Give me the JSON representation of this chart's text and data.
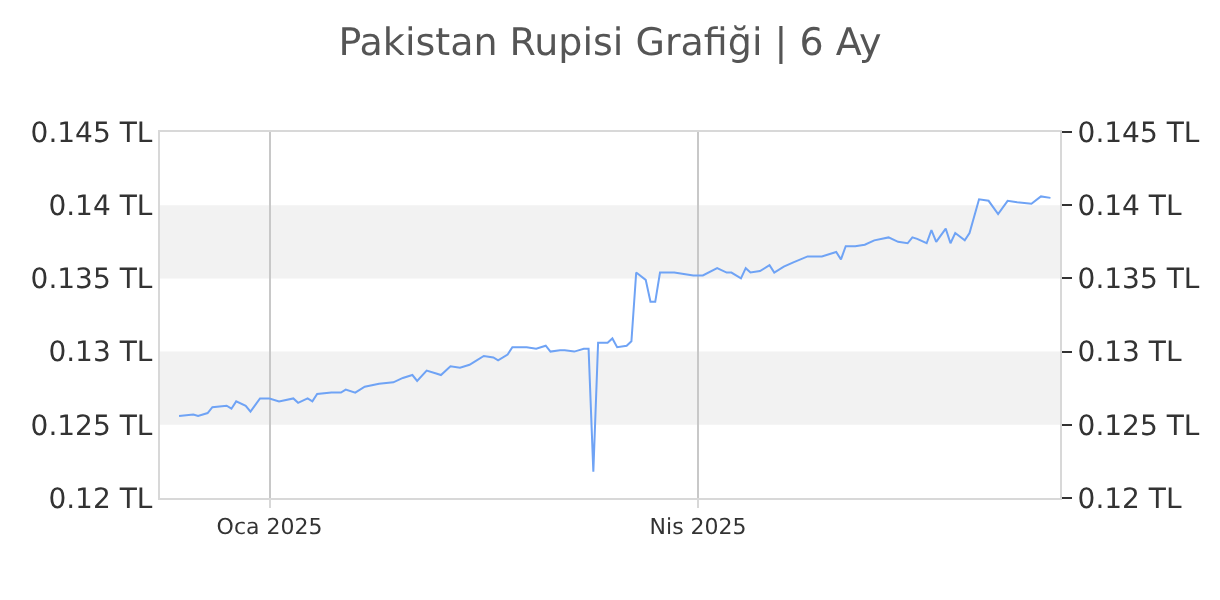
{
  "chart_data": {
    "type": "line",
    "title": "Pakistan Rupisi Grafiği | 6 Ay",
    "x": [
      "2024-12-13",
      "2024-12-16",
      "2024-12-17",
      "2024-12-19",
      "2024-12-20",
      "2024-12-23",
      "2024-12-24",
      "2024-12-25",
      "2024-12-27",
      "2024-12-28",
      "2024-12-30",
      "2025-01-01",
      "2025-01-03",
      "2025-01-06",
      "2025-01-07",
      "2025-01-09",
      "2025-01-10",
      "2025-01-11",
      "2025-01-14",
      "2025-01-16",
      "2025-01-17",
      "2025-01-19",
      "2025-01-21",
      "2025-01-24",
      "2025-01-27",
      "2025-01-29",
      "2025-01-31",
      "2025-02-01",
      "2025-02-03",
      "2025-02-05",
      "2025-02-06",
      "2025-02-08",
      "2025-02-10",
      "2025-02-12",
      "2025-02-13",
      "2025-02-15",
      "2025-02-17",
      "2025-02-18",
      "2025-02-20",
      "2025-02-21",
      "2025-02-24",
      "2025-02-26",
      "2025-02-28",
      "2025-03-01",
      "2025-03-03",
      "2025-03-04",
      "2025-03-06",
      "2025-03-08",
      "2025-03-09",
      "2025-03-10",
      "2025-03-11",
      "2025-03-13",
      "2025-03-14",
      "2025-03-15",
      "2025-03-17",
      "2025-03-18",
      "2025-03-19",
      "2025-03-21",
      "2025-03-22",
      "2025-03-23",
      "2025-03-24",
      "2025-03-27",
      "2025-03-31",
      "2025-04-02",
      "2025-04-05",
      "2025-04-07",
      "2025-04-08",
      "2025-04-10",
      "2025-04-11",
      "2025-04-12",
      "2025-04-14",
      "2025-04-16",
      "2025-04-17",
      "2025-04-19",
      "2025-04-21",
      "2025-04-24",
      "2025-04-27",
      "2025-04-30",
      "2025-05-01",
      "2025-05-02",
      "2025-05-04",
      "2025-05-06",
      "2025-05-08",
      "2025-05-11",
      "2025-05-13",
      "2025-05-15",
      "2025-05-16",
      "2025-05-17",
      "2025-05-19",
      "2025-05-20",
      "2025-05-21",
      "2025-05-23",
      "2025-05-24",
      "2025-05-25",
      "2025-05-27",
      "2025-05-28",
      "2025-05-30",
      "2025-06-01",
      "2025-06-03",
      "2025-06-05",
      "2025-06-07",
      "2025-06-10",
      "2025-06-12",
      "2025-06-14"
    ],
    "series": [
      {
        "color": "#6fa3f5",
        "values": [
          0.1256,
          0.1257,
          0.1256,
          0.1258,
          0.1262,
          0.1263,
          0.1261,
          0.1266,
          0.1263,
          0.1259,
          0.1268,
          0.1268,
          0.1266,
          0.1268,
          0.1265,
          0.1268,
          0.1266,
          0.1271,
          0.1272,
          0.1272,
          0.1274,
          0.1272,
          0.1276,
          0.1278,
          0.1279,
          0.1282,
          0.1284,
          0.128,
          0.1287,
          0.1285,
          0.1284,
          0.129,
          0.1289,
          0.1291,
          0.1293,
          0.1297,
          0.1296,
          0.1294,
          0.1298,
          0.1303,
          0.1303,
          0.1302,
          0.1304,
          0.13,
          0.1301,
          0.1301,
          0.13,
          0.1302,
          0.1302,
          0.1218,
          0.1306,
          0.1306,
          0.1309,
          0.1303,
          0.1304,
          0.1307,
          0.1354,
          0.1349,
          0.1334,
          0.1334,
          0.1354,
          0.1354,
          0.1352,
          0.1352,
          0.1357,
          0.1354,
          0.1354,
          0.135,
          0.1357,
          0.1354,
          0.1355,
          0.1359,
          0.1354,
          0.1358,
          0.1361,
          0.1365,
          0.1365,
          0.1368,
          0.1363,
          0.1372,
          0.1372,
          0.1373,
          0.1376,
          0.1378,
          0.1375,
          0.1374,
          0.1378,
          0.1377,
          0.1374,
          0.1383,
          0.1375,
          0.1384,
          0.1374,
          0.1381,
          0.1376,
          0.1381,
          0.1404,
          0.1403,
          0.1394,
          0.1403,
          0.1402,
          0.1401,
          0.1406,
          0.1405
        ]
      }
    ],
    "xlim": [
      "2024-12-09",
      "2025-06-16"
    ],
    "xticks": [
      {
        "value": "2025-01-01",
        "label": "Oca 2025"
      },
      {
        "value": "2025-04-01",
        "label": "Nis 2025"
      }
    ],
    "ylim": [
      0.12,
      0.145
    ],
    "yticks": [
      {
        "value": 0.12,
        "label": "0.12 TL"
      },
      {
        "value": 0.125,
        "label": "0.125 TL"
      },
      {
        "value": 0.13,
        "label": "0.13 TL"
      },
      {
        "value": 0.135,
        "label": "0.135 TL"
      },
      {
        "value": 0.14,
        "label": "0.14 TL"
      },
      {
        "value": 0.145,
        "label": "0.145 TL"
      }
    ],
    "y2lim": [
      0.12,
      0.145
    ],
    "y2ticks": [
      {
        "value": 0.12,
        "label": "0.12 TL"
      },
      {
        "value": 0.125,
        "label": "0.125 TL"
      },
      {
        "value": 0.13,
        "label": "0.13 TL"
      },
      {
        "value": 0.135,
        "label": "0.135 TL"
      },
      {
        "value": 0.14,
        "label": "0.14 TL"
      },
      {
        "value": 0.145,
        "label": "0.145 TL"
      }
    ],
    "bands": [
      {
        "axis": "y",
        "from": 0.125,
        "to": 0.13,
        "color": "#f2f2f2"
      },
      {
        "axis": "y",
        "from": 0.135,
        "to": 0.14,
        "color": "#f2f2f2"
      }
    ],
    "grid": "x",
    "marker": "none",
    "line_style": "solid"
  }
}
